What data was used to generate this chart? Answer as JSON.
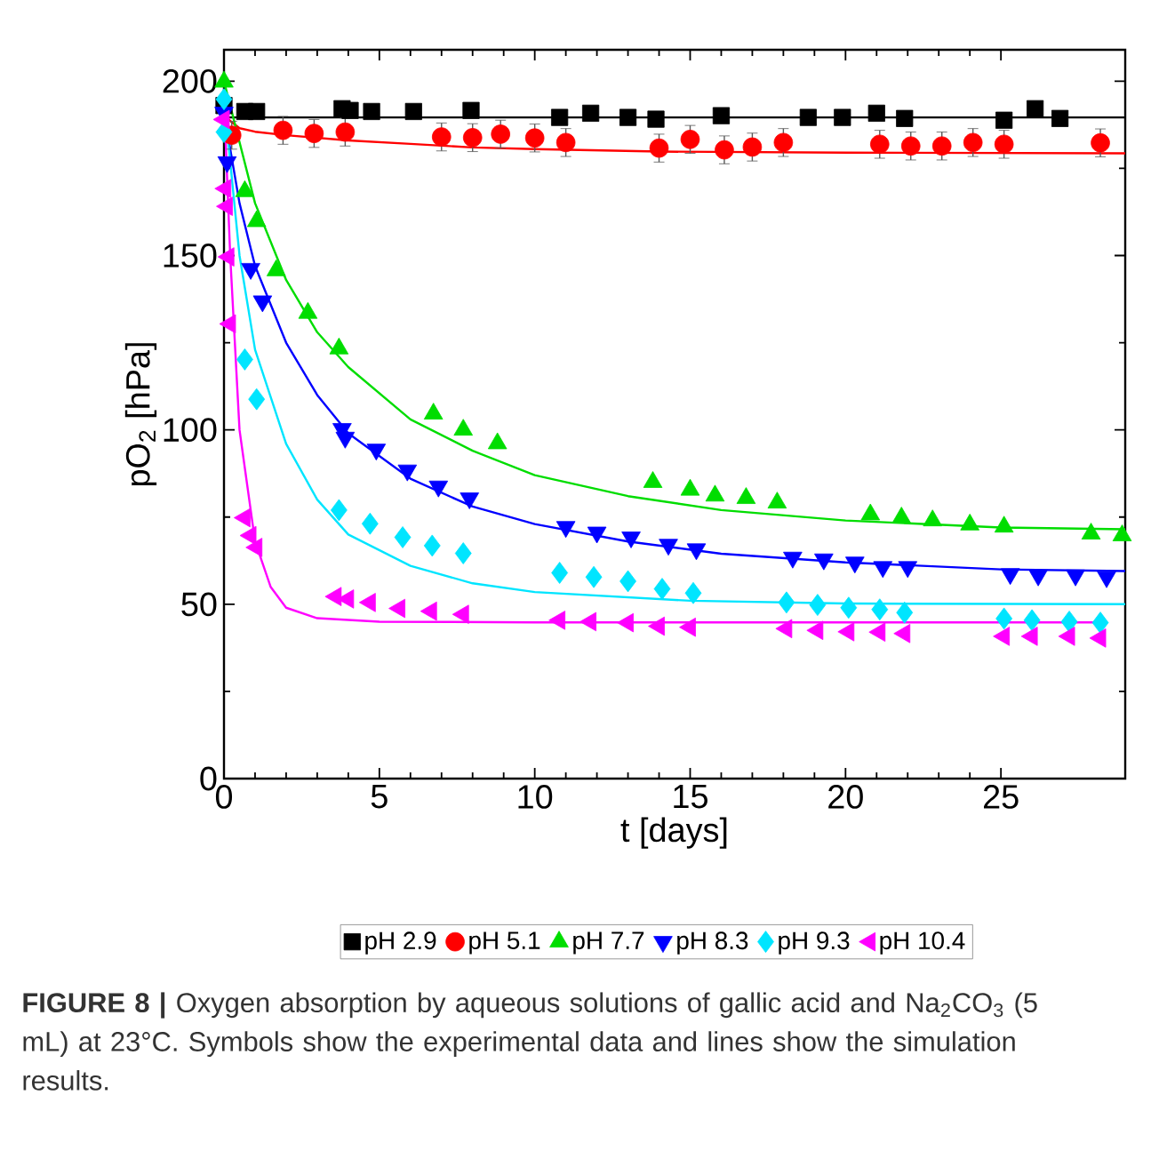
{
  "chart_data": {
    "type": "scatter",
    "xlabel": "t [days]",
    "ylabel": "pO$_{2}$ [hPa]",
    "xlim": [
      0,
      29
    ],
    "ylim": [
      0,
      209
    ],
    "xticks": [
      0,
      5,
      10,
      15,
      20,
      25
    ],
    "yticks": [
      0,
      50,
      100,
      150,
      200
    ],
    "grid": false,
    "legend": "bottom",
    "annotations": [
      "**FIGURE 8 |** Oxygen absorption by aqueous solutions of gallic acid and Na$_{2}$CO$_{3}$ (5 mL) at 23°C. Symbols show the experimental data and lines show the simulation results."
    ],
    "series": [
      {
        "type": "line",
        "color": "#000000",
        "x": [
          0,
          29
        ],
        "values": [
          189.6,
          189.6
        ]
      },
      {
        "type": "line",
        "color": "#ff0000",
        "x": [
          0,
          0.5,
          1,
          2,
          4,
          6,
          8,
          10,
          14,
          20,
          29
        ],
        "values": [
          190,
          186.5,
          185.5,
          184.5,
          183,
          182,
          181,
          180.5,
          179.8,
          179.5,
          179.3
        ]
      },
      {
        "type": "line",
        "color": "#00dd00",
        "x": [
          0,
          1,
          2,
          3,
          4,
          6,
          8,
          10,
          13,
          16,
          20,
          25,
          29
        ],
        "values": [
          200,
          165,
          143,
          128,
          118,
          103,
          94,
          87,
          81,
          77,
          74,
          72,
          71.5
        ]
      },
      {
        "type": "line",
        "color": "#0000ff",
        "x": [
          0,
          0.5,
          1,
          2,
          3,
          4,
          6,
          8,
          10,
          13,
          16,
          20,
          25,
          29
        ],
        "values": [
          191,
          165,
          147,
          125,
          110,
          99,
          86,
          78,
          73,
          68,
          64.5,
          62,
          60,
          59.5
        ]
      },
      {
        "type": "line",
        "color": "#00e5ff",
        "x": [
          0,
          0.5,
          1,
          2,
          3,
          4,
          6,
          8,
          10,
          15,
          20,
          29
        ],
        "values": [
          195,
          150,
          123,
          96,
          80,
          70,
          61,
          56,
          53.5,
          51,
          50.2,
          50
        ]
      },
      {
        "type": "line",
        "color": "#ff00ff",
        "x": [
          0,
          0.2,
          0.5,
          1,
          1.5,
          2,
          3,
          5,
          10,
          28.2
        ],
        "values": [
          195,
          150,
          100,
          68,
          55,
          49,
          46,
          45,
          44.8,
          44.8
        ]
      },
      {
        "name": "pH 2.9",
        "marker": "square",
        "color": "#000000",
        "x": [
          0,
          0.67,
          1.05,
          3.8,
          4.06,
          4.75,
          6.1,
          7.95,
          10.8,
          11.8,
          13.0,
          13.9,
          16.0,
          18.8,
          19.9,
          21.0,
          21.9,
          25.1,
          26.1,
          26.9
        ],
        "values": [
          193,
          191.3,
          191.3,
          192.1,
          191.6,
          191.3,
          191.3,
          191.6,
          189.6,
          190.8,
          189.6,
          189.1,
          190.1,
          189.6,
          189.6,
          190.8,
          189.3,
          188.8,
          192.1,
          189.3
        ]
      },
      {
        "name": "pH 5.1",
        "marker": "circle",
        "color": "#ff0000",
        "x": [
          0.25,
          1.9,
          2.9,
          3.9,
          7.0,
          8.0,
          8.9,
          10.0,
          11.0,
          14.0,
          15.0,
          16.1,
          17.0,
          18.0,
          21.1,
          22.1,
          23.1,
          24.1,
          25.1,
          28.2
        ],
        "values": [
          184.5,
          185.9,
          185,
          185.4,
          184,
          183.8,
          184.8,
          183.7,
          182.4,
          180.8,
          183.3,
          180.3,
          181.1,
          182.4,
          181.9,
          181.4,
          181.4,
          182.4,
          181.9,
          182.3
        ],
        "errors": [
          4,
          4,
          4,
          4,
          4,
          4,
          4,
          4,
          4,
          4,
          4,
          4,
          4,
          4,
          4,
          4,
          4,
          4,
          4,
          4
        ]
      },
      {
        "name": "pH 7.7",
        "marker": "triangle",
        "color": "#00dd00",
        "x": [
          0,
          0.67,
          1.05,
          1.68,
          2.7,
          3.7,
          6.74,
          7.7,
          8.8,
          13.8,
          15.0,
          15.8,
          16.8,
          17.8,
          20.8,
          21.8,
          22.8,
          24.0,
          25.1,
          27.9,
          28.9
        ],
        "values": [
          199.8,
          168.4,
          159.8,
          145.7,
          133.5,
          123.3,
          104.6,
          100,
          96.1,
          85,
          82.8,
          81.1,
          80.4,
          79.1,
          75.7,
          74.8,
          74,
          72.8,
          72.2,
          70.2,
          69.7
        ]
      },
      {
        "name": "pH 8.3",
        "marker": "triangle-down",
        "color": "#0000ff",
        "x": [
          0,
          0.1,
          0.86,
          1.24,
          3.8,
          3.9,
          4.9,
          5.9,
          6.9,
          7.9,
          11.0,
          12.0,
          13.1,
          14.3,
          15.2,
          18.3,
          19.3,
          20.3,
          21.2,
          22.0,
          25.3,
          26.2,
          27.4,
          28.4
        ],
        "values": [
          191,
          176.8,
          146.2,
          136.9,
          100.3,
          97.8,
          94.4,
          88.4,
          83.8,
          80.4,
          72.2,
          70.6,
          69.2,
          67.1,
          65.8,
          63.4,
          62.9,
          62.0,
          60.7,
          60.7,
          58.7,
          58.3,
          58.3,
          57.8
        ]
      },
      {
        "name": "pH 9.3",
        "marker": "diamond",
        "color": "#00e5ff",
        "x": [
          0,
          0,
          0.67,
          1.05,
          3.7,
          4.7,
          5.75,
          6.7,
          7.7,
          10.8,
          11.9,
          13.0,
          14.1,
          15.1,
          18.1,
          19.1,
          20.1,
          21.1,
          21.9,
          25.1,
          26.0,
          27.2,
          28.2
        ],
        "values": [
          194.8,
          185.4,
          120.2,
          108.8,
          77,
          73.1,
          69.2,
          66.8,
          64.6,
          59,
          57.8,
          56.6,
          54.4,
          53.2,
          50.5,
          49.8,
          49,
          48.5,
          47.6,
          45.9,
          45.4,
          45,
          44.7
        ]
      },
      {
        "name": "pH 10.4",
        "marker": "triangle-left",
        "color": "#ff00ff",
        "x": [
          0,
          0.05,
          0.1,
          0.15,
          0.2,
          0.67,
          0.86,
          1.05,
          3.6,
          4.0,
          4.7,
          5.65,
          6.67,
          7.7,
          10.8,
          11.8,
          13.0,
          14.0,
          15.0,
          18.1,
          19.1,
          20.1,
          21.1,
          21.9,
          25.1,
          26.0,
          27.2,
          28.2
        ],
        "values": [
          189,
          169.2,
          164.1,
          149.6,
          130.4,
          74.8,
          69.7,
          66.3,
          52.2,
          51.5,
          50.5,
          48.8,
          48,
          47.1,
          45.4,
          45,
          44.7,
          43.7,
          43.4,
          43,
          42.5,
          42.1,
          42,
          41.6,
          40.8,
          40.8,
          40.8,
          40.3
        ]
      }
    ]
  }
}
